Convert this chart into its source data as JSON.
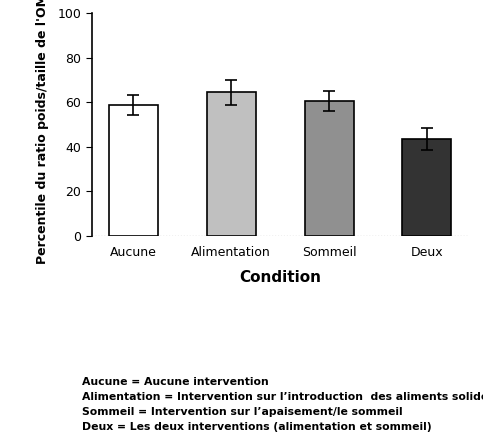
{
  "categories": [
    "Aucune",
    "Alimentation",
    "Sommeil",
    "Deux"
  ],
  "values": [
    59.0,
    64.5,
    60.5,
    43.5
  ],
  "errors": [
    4.5,
    5.5,
    4.5,
    5.0
  ],
  "bar_colors": [
    "#ffffff",
    "#c0c0c0",
    "#909090",
    "#333333"
  ],
  "bar_edgecolors": [
    "#000000",
    "#000000",
    "#000000",
    "#000000"
  ],
  "ylabel": "Percentile du ratio poids/taille de l'OMS",
  "xlabel": "Condition",
  "ylim": [
    0,
    100
  ],
  "yticks": [
    0,
    20,
    40,
    60,
    80,
    100
  ],
  "footnote_lines": [
    "Aucune = Aucune intervention",
    "Alimentation = Intervention sur l’introduction  des aliments solides",
    "Sommeil = Intervention sur l’apaisement/le sommeil",
    "Deux = Les deux interventions (alimentation et sommeil)"
  ]
}
